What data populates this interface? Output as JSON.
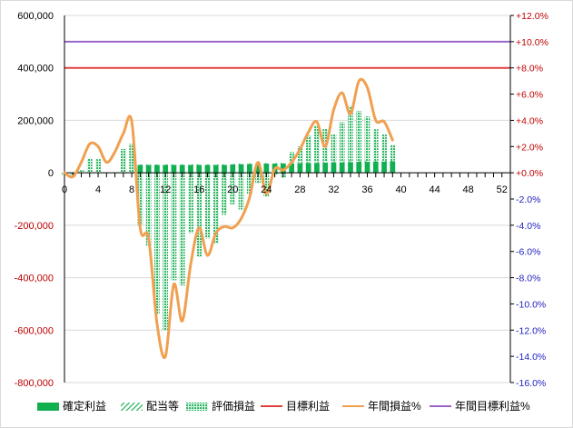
{
  "chart_data": {
    "type": "bar",
    "title": "",
    "x": [
      0,
      1,
      2,
      3,
      4,
      5,
      6,
      7,
      8,
      9,
      10,
      11,
      12,
      13,
      14,
      15,
      16,
      17,
      18,
      19,
      20,
      21,
      22,
      23,
      24,
      25,
      26,
      27,
      28,
      29,
      30,
      31,
      32,
      33,
      34,
      35,
      36,
      37,
      38,
      39
    ],
    "x_ticks": [
      "0",
      "4",
      "8",
      "12",
      "16",
      "20",
      "24",
      "28",
      "32",
      "36",
      "40",
      "44",
      "48",
      "52"
    ],
    "xlim": [
      0,
      53
    ],
    "y_left": {
      "ylim": [
        -800000,
        600000
      ],
      "ticks": [
        "600,000",
        "400,000",
        "200,000",
        "0",
        "-200,000",
        "-400,000",
        "-600,000",
        "-800,000"
      ],
      "negative_color": "#c00000"
    },
    "y_right": {
      "ylim": [
        -16,
        12
      ],
      "ticks": [
        "+12.0%",
        "+10.0%",
        "+8.0%",
        "+6.0%",
        "+4.0%",
        "+2.0%",
        "+0.0%",
        "-2.0%",
        "-4.0%",
        "-6.0%",
        "-8.0%",
        "-10.0%",
        "-12.0%",
        "-14.0%",
        "-16.0%"
      ],
      "positive_color": "#c00000",
      "negative_color": "#1f1fbf"
    },
    "series": [
      {
        "name": "確定利益",
        "kind": "bar",
        "axis": "left",
        "color": "#10b050",
        "values": [
          0,
          0,
          0,
          0,
          0,
          0,
          0,
          0,
          0,
          30000,
          30000,
          30000,
          30000,
          30000,
          30000,
          30000,
          30000,
          30000,
          30000,
          30000,
          32000,
          33000,
          34000,
          34000,
          35000,
          35000,
          36000,
          36000,
          37000,
          38000,
          38000,
          39000,
          40000,
          40000,
          41000,
          42000,
          42000,
          43000,
          43000,
          44000
        ]
      },
      {
        "name": "配当等",
        "kind": "bar",
        "axis": "left",
        "color": "#10b050",
        "values": [
          0,
          0,
          0,
          0,
          0,
          0,
          0,
          0,
          0,
          2000,
          2000,
          2000,
          2000,
          2000,
          2000,
          2000,
          2000,
          2000,
          2000,
          2000,
          2000,
          2000,
          2000,
          2000,
          2000,
          2000,
          2000,
          3000,
          3000,
          3000,
          3000,
          3000,
          3000,
          3000,
          3000,
          3000,
          3000,
          3000,
          3000,
          3000
        ]
      },
      {
        "name": "評価損益",
        "kind": "bar",
        "axis": "left",
        "color": "#33b866",
        "values": [
          -8000,
          -15000,
          10000,
          55000,
          52000,
          0,
          3000,
          90000,
          110000,
          -200000,
          -280000,
          -540000,
          -600000,
          -410000,
          -430000,
          -230000,
          -320000,
          -250000,
          -270000,
          -160000,
          -120000,
          -140000,
          -80000,
          -40000,
          -90000,
          -10000,
          -20000,
          40000,
          60000,
          100000,
          140000,
          125000,
          105000,
          150000,
          210000,
          190000,
          170000,
          120000,
          100000,
          60000
        ]
      },
      {
        "name": "目標利益",
        "kind": "hline",
        "axis": "left",
        "color": "#e04040",
        "value": 400000
      },
      {
        "name": "年間損益%",
        "kind": "line",
        "axis": "right",
        "color": "#f0a050",
        "values": [
          0.0,
          -0.3,
          0.8,
          2.2,
          2.0,
          0.8,
          1.6,
          3.0,
          3.9,
          -4.2,
          -5.0,
          -11.5,
          -14.0,
          -8.5,
          -11.3,
          -7.0,
          -4.2,
          -6.3,
          -4.6,
          -4.1,
          -4.2,
          -3.5,
          -1.9,
          0.8,
          -1.6,
          0.3,
          0.2,
          0.8,
          1.8,
          3.1,
          3.9,
          2.0,
          4.8,
          6.1,
          4.5,
          7.0,
          6.5,
          4.0,
          3.9,
          2.5
        ]
      },
      {
        "name": "年間目標利益%",
        "kind": "hline",
        "axis": "right",
        "color": "#9966cc",
        "value": 10
      }
    ],
    "legend": {
      "position": "bottom"
    },
    "grid": {
      "horizontal": true,
      "vertical": false
    }
  }
}
